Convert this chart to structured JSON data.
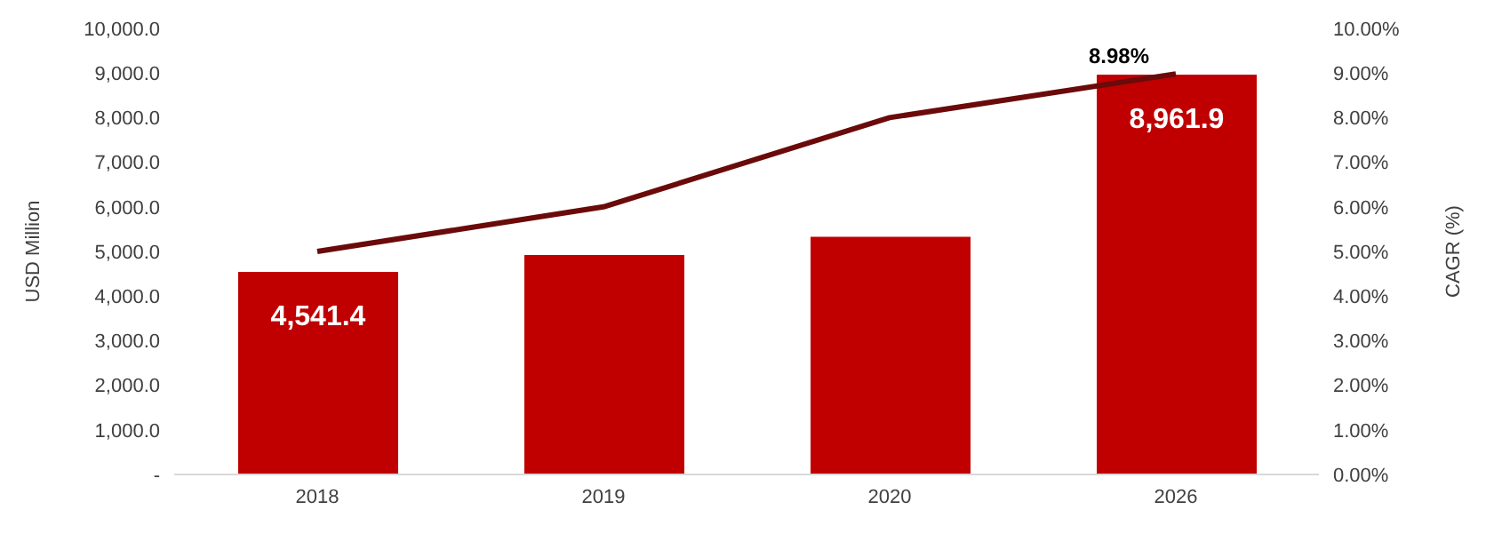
{
  "chart_data": {
    "type": "bar",
    "categories": [
      "2018",
      "2019",
      "2020",
      "2026"
    ],
    "ylabel": "USD Million",
    "y2label": "CAGR (%)",
    "series": [
      {
        "color": "#c00000",
        "values": [
          4541.4,
          4920,
          5330,
          8961.9
        ],
        "value_labels": [
          "4,541.4",
          null,
          null,
          "8,961.9"
        ]
      },
      {
        "type": "line",
        "axis": "y2",
        "color": "#6b0a0a",
        "values": [
          5.0,
          6.0,
          8.0,
          8.98
        ],
        "value_labels": [
          null,
          null,
          null,
          "8.98%"
        ]
      }
    ],
    "ylim": [
      0,
      10000
    ],
    "yticks": [
      {
        "value": 0,
        "label": "-"
      },
      {
        "value": 1000,
        "label": "1,000.0"
      },
      {
        "value": 2000,
        "label": "2,000.0"
      },
      {
        "value": 3000,
        "label": "3,000.0"
      },
      {
        "value": 4000,
        "label": "4,000.0"
      },
      {
        "value": 5000,
        "label": "5,000.0"
      },
      {
        "value": 6000,
        "label": "6,000.0"
      },
      {
        "value": 7000,
        "label": "7,000.0"
      },
      {
        "value": 8000,
        "label": "8,000.0"
      },
      {
        "value": 9000,
        "label": "9,000.0"
      },
      {
        "value": 10000,
        "label": "10,000.0"
      }
    ],
    "y2lim": [
      0,
      10
    ],
    "y2ticks": [
      {
        "value": 0,
        "label": "0.00%"
      },
      {
        "value": 1,
        "label": "1.00%"
      },
      {
        "value": 2,
        "label": "2.00%"
      },
      {
        "value": 3,
        "label": "3.00%"
      },
      {
        "value": 4,
        "label": "4.00%"
      },
      {
        "value": 5,
        "label": "5.00%"
      },
      {
        "value": 6,
        "label": "6.00%"
      },
      {
        "value": 7,
        "label": "7.00%"
      },
      {
        "value": 8,
        "label": "8.00%"
      },
      {
        "value": 9,
        "label": "9.00%"
      },
      {
        "value": 10,
        "label": "10.00%"
      }
    ],
    "grid": false,
    "legend": false,
    "marker": "none",
    "line_style": "solid"
  }
}
